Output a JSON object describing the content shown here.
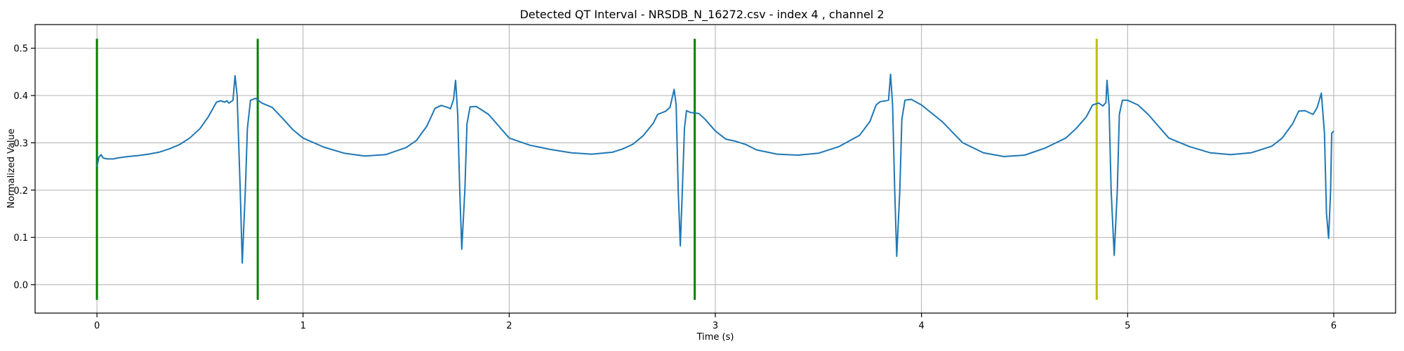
{
  "chart_data": {
    "type": "line",
    "title": "Detected QT Interval - NRSDB_N_16272.csv - index 4 , channel 2",
    "xlabel": "Time (s)",
    "ylabel": "Normalized Value",
    "xlim": [
      -0.3,
      6.3
    ],
    "ylim": [
      -0.06,
      0.55
    ],
    "xticks": [
      0,
      1,
      2,
      3,
      4,
      5,
      6
    ],
    "yticks": [
      0.0,
      0.1,
      0.2,
      0.3,
      0.4,
      0.5
    ],
    "ytick_labels": [
      "0.0",
      "0.1",
      "0.2",
      "0.3",
      "0.4",
      "0.5"
    ],
    "grid": true,
    "series": [
      {
        "color": "#1f77b4",
        "points": [
          [
            0.0,
            0.25
          ],
          [
            0.01,
            0.27
          ],
          [
            0.02,
            0.275
          ],
          [
            0.03,
            0.268
          ],
          [
            0.05,
            0.266
          ],
          [
            0.08,
            0.266
          ],
          [
            0.1,
            0.268
          ],
          [
            0.15,
            0.271
          ],
          [
            0.2,
            0.273
          ],
          [
            0.25,
            0.276
          ],
          [
            0.3,
            0.28
          ],
          [
            0.35,
            0.287
          ],
          [
            0.4,
            0.296
          ],
          [
            0.45,
            0.31
          ],
          [
            0.5,
            0.33
          ],
          [
            0.54,
            0.355
          ],
          [
            0.58,
            0.386
          ],
          [
            0.6,
            0.389
          ],
          [
            0.62,
            0.386
          ],
          [
            0.63,
            0.389
          ],
          [
            0.64,
            0.384
          ],
          [
            0.66,
            0.39
          ],
          [
            0.67,
            0.442
          ],
          [
            0.68,
            0.4
          ],
          [
            0.695,
            0.2
          ],
          [
            0.705,
            0.046
          ],
          [
            0.72,
            0.2
          ],
          [
            0.73,
            0.33
          ],
          [
            0.745,
            0.39
          ],
          [
            0.77,
            0.394
          ],
          [
            0.8,
            0.384
          ],
          [
            0.85,
            0.375
          ],
          [
            0.9,
            0.352
          ],
          [
            0.95,
            0.328
          ],
          [
            1.0,
            0.31
          ],
          [
            1.1,
            0.291
          ],
          [
            1.2,
            0.278
          ],
          [
            1.3,
            0.272
          ],
          [
            1.4,
            0.275
          ],
          [
            1.5,
            0.29
          ],
          [
            1.55,
            0.305
          ],
          [
            1.6,
            0.335
          ],
          [
            1.64,
            0.373
          ],
          [
            1.67,
            0.379
          ],
          [
            1.7,
            0.375
          ],
          [
            1.715,
            0.372
          ],
          [
            1.73,
            0.392
          ],
          [
            1.74,
            0.432
          ],
          [
            1.75,
            0.36
          ],
          [
            1.76,
            0.2
          ],
          [
            1.77,
            0.075
          ],
          [
            1.785,
            0.2
          ],
          [
            1.795,
            0.34
          ],
          [
            1.81,
            0.376
          ],
          [
            1.84,
            0.377
          ],
          [
            1.9,
            0.36
          ],
          [
            1.95,
            0.335
          ],
          [
            2.0,
            0.31
          ],
          [
            2.1,
            0.295
          ],
          [
            2.2,
            0.286
          ],
          [
            2.3,
            0.279
          ],
          [
            2.4,
            0.276
          ],
          [
            2.5,
            0.28
          ],
          [
            2.55,
            0.287
          ],
          [
            2.6,
            0.297
          ],
          [
            2.65,
            0.315
          ],
          [
            2.7,
            0.342
          ],
          [
            2.72,
            0.36
          ],
          [
            2.76,
            0.367
          ],
          [
            2.78,
            0.375
          ],
          [
            2.8,
            0.413
          ],
          [
            2.81,
            0.38
          ],
          [
            2.82,
            0.2
          ],
          [
            2.83,
            0.082
          ],
          [
            2.84,
            0.2
          ],
          [
            2.85,
            0.33
          ],
          [
            2.86,
            0.368
          ],
          [
            2.88,
            0.364
          ],
          [
            2.92,
            0.362
          ],
          [
            2.95,
            0.35
          ],
          [
            3.0,
            0.325
          ],
          [
            3.05,
            0.308
          ],
          [
            3.1,
            0.303
          ],
          [
            3.15,
            0.296
          ],
          [
            3.2,
            0.285
          ],
          [
            3.3,
            0.276
          ],
          [
            3.4,
            0.274
          ],
          [
            3.5,
            0.278
          ],
          [
            3.6,
            0.292
          ],
          [
            3.7,
            0.316
          ],
          [
            3.75,
            0.345
          ],
          [
            3.78,
            0.38
          ],
          [
            3.8,
            0.387
          ],
          [
            3.84,
            0.39
          ],
          [
            3.85,
            0.445
          ],
          [
            3.86,
            0.38
          ],
          [
            3.87,
            0.2
          ],
          [
            3.88,
            0.06
          ],
          [
            3.895,
            0.2
          ],
          [
            3.905,
            0.35
          ],
          [
            3.92,
            0.39
          ],
          [
            3.95,
            0.392
          ],
          [
            4.0,
            0.38
          ],
          [
            4.1,
            0.345
          ],
          [
            4.2,
            0.3
          ],
          [
            4.3,
            0.279
          ],
          [
            4.4,
            0.271
          ],
          [
            4.5,
            0.274
          ],
          [
            4.6,
            0.289
          ],
          [
            4.7,
            0.31
          ],
          [
            4.75,
            0.33
          ],
          [
            4.8,
            0.355
          ],
          [
            4.83,
            0.38
          ],
          [
            4.86,
            0.384
          ],
          [
            4.88,
            0.378
          ],
          [
            4.895,
            0.385
          ],
          [
            4.9,
            0.432
          ],
          [
            4.91,
            0.38
          ],
          [
            4.92,
            0.2
          ],
          [
            4.935,
            0.062
          ],
          [
            4.95,
            0.2
          ],
          [
            4.96,
            0.36
          ],
          [
            4.975,
            0.39
          ],
          [
            5.0,
            0.39
          ],
          [
            5.05,
            0.38
          ],
          [
            5.1,
            0.36
          ],
          [
            5.15,
            0.335
          ],
          [
            5.2,
            0.31
          ],
          [
            5.3,
            0.292
          ],
          [
            5.4,
            0.279
          ],
          [
            5.5,
            0.275
          ],
          [
            5.6,
            0.279
          ],
          [
            5.7,
            0.293
          ],
          [
            5.75,
            0.31
          ],
          [
            5.8,
            0.34
          ],
          [
            5.83,
            0.367
          ],
          [
            5.86,
            0.368
          ],
          [
            5.9,
            0.36
          ],
          [
            5.92,
            0.375
          ],
          [
            5.94,
            0.405
          ],
          [
            5.955,
            0.32
          ],
          [
            5.965,
            0.15
          ],
          [
            5.975,
            0.098
          ],
          [
            5.985,
            0.2
          ],
          [
            5.99,
            0.32
          ],
          [
            6.0,
            0.325
          ]
        ]
      }
    ],
    "vertical_markers": [
      {
        "x": 0.0,
        "y_range": [
          -0.032,
          0.52
        ],
        "color": "#008000"
      },
      {
        "x": 0.78,
        "y_range": [
          -0.032,
          0.52
        ],
        "color": "#008000"
      },
      {
        "x": 2.9,
        "y_range": [
          -0.032,
          0.52
        ],
        "color": "#008000"
      },
      {
        "x": 4.85,
        "y_range": [
          -0.032,
          0.52
        ],
        "color": "#bfbf00"
      }
    ]
  }
}
